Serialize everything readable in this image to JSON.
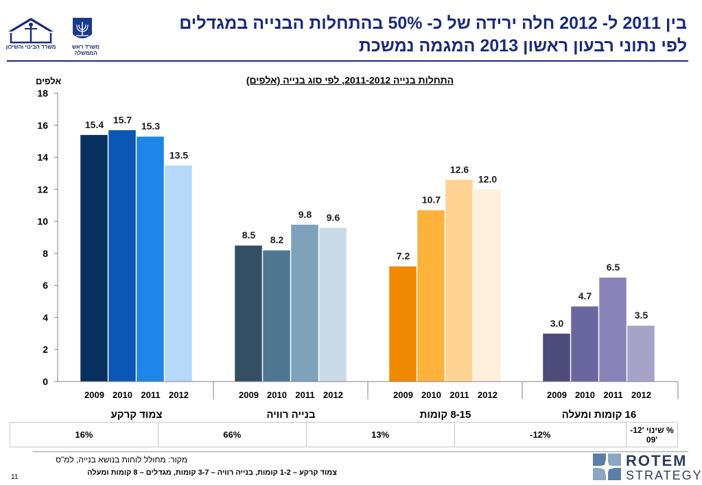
{
  "header": {
    "title_line1": "בין 2011 ל- 2012 חלה ירידה של כ- 50% בהתחלות הבנייה במגדלים",
    "title_line2": "לפי נתוני רבעון ראשון 2013 המגמה נמשכת",
    "logo_left_caption": "משרד הבינוי והשיכון",
    "logo_mid_caption": "משרד ראש הממשלה"
  },
  "chart_data": {
    "type": "bar",
    "title": "התחלות בנייה 2011-2012, לפי סוג בנייה (אלפים)",
    "ylabel": "אלפים",
    "ylim": [
      0,
      18
    ],
    "yticks": [
      0,
      2,
      4,
      6,
      8,
      10,
      12,
      14,
      16,
      18
    ],
    "grid": false,
    "years": [
      "2009",
      "2010",
      "2011",
      "2012"
    ],
    "groups": [
      {
        "name": "צמוד קרקע",
        "values": [
          15.4,
          15.7,
          15.3,
          13.5
        ],
        "value_labels": [
          "15.4",
          "15.7",
          "15.3",
          "13.5"
        ],
        "colors": [
          "#08305e",
          "#0b57b4",
          "#1e86e8",
          "#b5d8fb"
        ]
      },
      {
        "name": "בנייה רוויה",
        "values": [
          8.5,
          8.2,
          9.8,
          9.6
        ],
        "value_labels": [
          "8.5",
          "8.2",
          "9.8",
          "9.6"
        ],
        "colors": [
          "#344e62",
          "#4e7891",
          "#7ea2bc",
          "#c9dbe6"
        ]
      },
      {
        "name": "8-15 קומות",
        "values": [
          7.2,
          10.7,
          12.6,
          12.0
        ],
        "value_labels": [
          "7.2",
          "10.7",
          "12.6",
          "12.0"
        ],
        "colors": [
          "#f08a00",
          "#ffb23c",
          "#ffd394",
          "#fff0dd"
        ]
      },
      {
        "name": "16 קומות ומעלה",
        "values": [
          3.0,
          4.7,
          6.5,
          3.5
        ],
        "value_labels": [
          "3.0",
          "4.7",
          "6.5",
          "3.5"
        ],
        "colors": [
          "#4d4b7a",
          "#6a66a0",
          "#8984b8",
          "#a6a3c8"
        ]
      }
    ]
  },
  "change_table": {
    "row_header": "% שינוי '12-'09",
    "values": [
      "-12%",
      "13%",
      "66%",
      "16%"
    ]
  },
  "footer": {
    "source": "מקור:  מחולל לוחות בנושא בנייה, למ\"ס",
    "footnote": "צמוד קרקע – 1-2 קומות, בנייה רוויה – 3-7 קומות, מגדלים – 8 קומות ומעלה",
    "page_number": "11",
    "brand_top": "ROTEM",
    "brand_bottom": "STRATEGY"
  }
}
